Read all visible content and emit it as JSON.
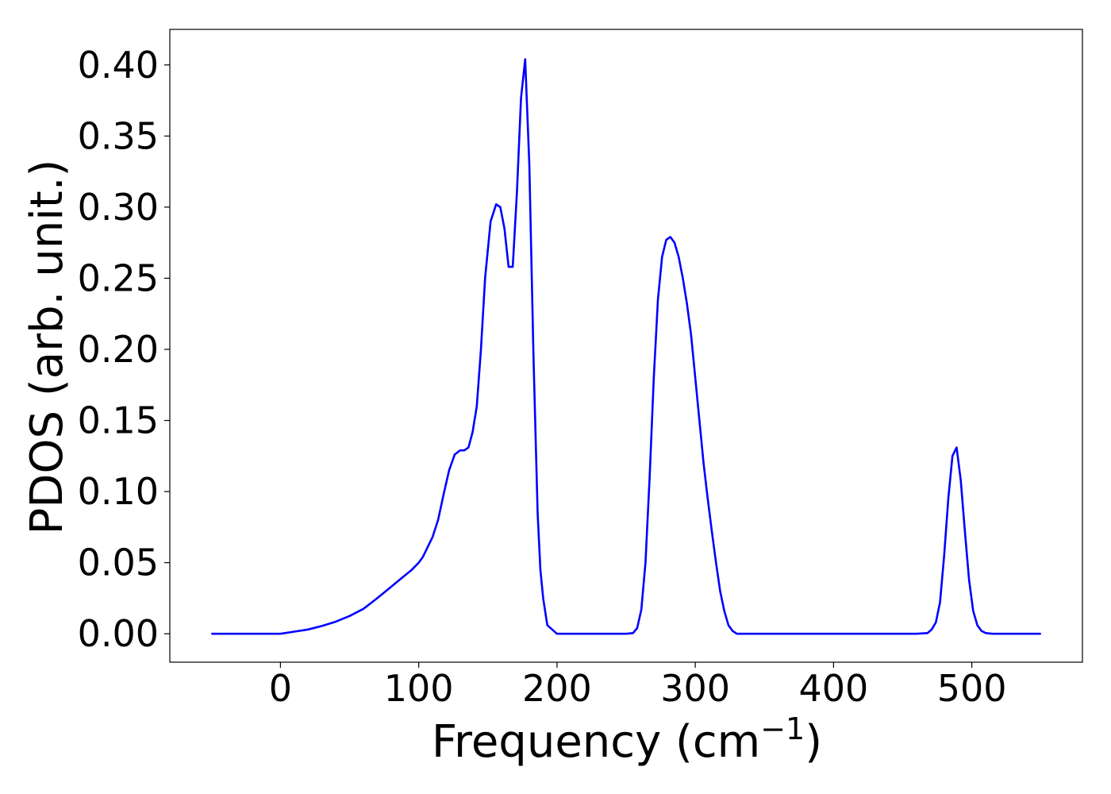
{
  "chart_data": {
    "type": "line",
    "xlabel": "Frequency (cm",
    "xlabel_superscript": "−1",
    "xlabel_close": ")",
    "ylabel": "PDOS (arb. unit.)",
    "xlim": [
      -80,
      580
    ],
    "ylim": [
      -0.02,
      0.425
    ],
    "xticks": [
      0,
      100,
      200,
      300,
      400,
      500
    ],
    "xtick_labels": [
      "0",
      "100",
      "200",
      "300",
      "400",
      "500"
    ],
    "yticks": [
      0.0,
      0.05,
      0.1,
      0.15,
      0.2,
      0.25,
      0.3,
      0.35,
      0.4
    ],
    "ytick_labels": [
      "0.00",
      "0.05",
      "0.10",
      "0.15",
      "0.20",
      "0.25",
      "0.30",
      "0.35",
      "0.40"
    ],
    "grid": false,
    "series": [
      {
        "color": "#0000ff",
        "x": [
          -50,
          0,
          10,
          20,
          30,
          40,
          50,
          60,
          70,
          80,
          85,
          90,
          95,
          100,
          103,
          106,
          110,
          114,
          118,
          122,
          126,
          130,
          133,
          136,
          139,
          142,
          145,
          148,
          152,
          156,
          159,
          162,
          165,
          168,
          171,
          174,
          177,
          180,
          183,
          186,
          188,
          190,
          193,
          200,
          240,
          250,
          255,
          258,
          261,
          264,
          267,
          270,
          273,
          276,
          279,
          282,
          285,
          288,
          291,
          294,
          297,
          300,
          303,
          306,
          309,
          312,
          315,
          318,
          321,
          324,
          327,
          330,
          335,
          340,
          400,
          460,
          468,
          471,
          474,
          477,
          480,
          483,
          486,
          489,
          492,
          495,
          498,
          501,
          504,
          507,
          510,
          515,
          550
        ],
        "y": [
          0.0,
          0.0,
          0.0015,
          0.003,
          0.0055,
          0.0085,
          0.0125,
          0.0175,
          0.025,
          0.033,
          0.037,
          0.041,
          0.045,
          0.05,
          0.054,
          0.06,
          0.068,
          0.08,
          0.098,
          0.115,
          0.126,
          0.129,
          0.129,
          0.131,
          0.142,
          0.16,
          0.2,
          0.25,
          0.29,
          0.302,
          0.3,
          0.285,
          0.258,
          0.258,
          0.31,
          0.377,
          0.404,
          0.33,
          0.195,
          0.085,
          0.045,
          0.025,
          0.006,
          0.0,
          0.0,
          0.0,
          0.0005,
          0.004,
          0.017,
          0.05,
          0.11,
          0.18,
          0.235,
          0.265,
          0.277,
          0.279,
          0.275,
          0.265,
          0.25,
          0.232,
          0.21,
          0.18,
          0.15,
          0.12,
          0.095,
          0.072,
          0.05,
          0.03,
          0.016,
          0.006,
          0.002,
          0.0,
          0.0,
          0.0,
          0.0,
          0.0,
          0.0005,
          0.003,
          0.008,
          0.022,
          0.055,
          0.095,
          0.125,
          0.131,
          0.108,
          0.072,
          0.038,
          0.016,
          0.006,
          0.002,
          0.0005,
          0.0,
          0.0
        ]
      }
    ]
  }
}
